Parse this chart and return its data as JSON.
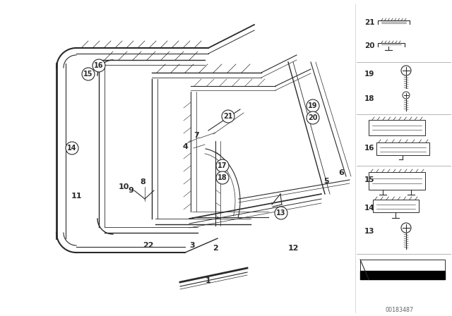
{
  "bg_color": "#ffffff",
  "fig_width": 6.4,
  "fig_height": 4.48,
  "dpi": 100,
  "diagram_color": "#2a2a2a",
  "watermark": "OO183487"
}
